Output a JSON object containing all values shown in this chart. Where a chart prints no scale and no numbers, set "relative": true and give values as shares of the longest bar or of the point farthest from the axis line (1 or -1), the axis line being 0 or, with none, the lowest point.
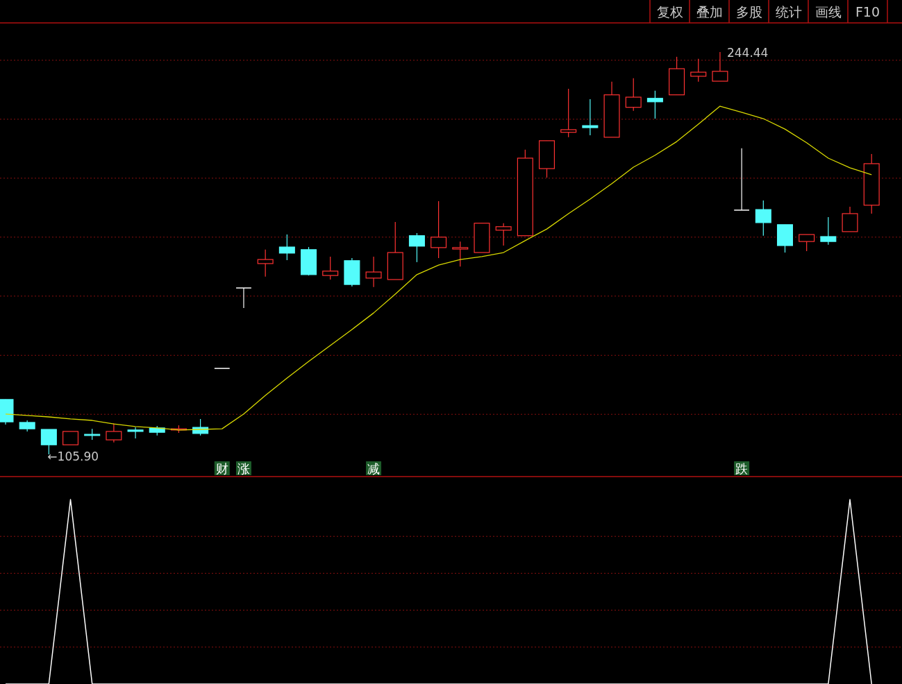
{
  "chart_data": [
    {
      "type": "candlestick",
      "categories": [
        null,
        null,
        null,
        null,
        null,
        null,
        null,
        null,
        null,
        null,
        null,
        null,
        null,
        null,
        null,
        null,
        null,
        null,
        null,
        null,
        null,
        null,
        null,
        null,
        null,
        null,
        null,
        null,
        null,
        null,
        null,
        null,
        null,
        null,
        null,
        null,
        null,
        null,
        null,
        null,
        null
      ],
      "grid": "y",
      "yticks": [
        {
          "value": 241.6,
          "label": null
        },
        {
          "value": 221.3,
          "label": null
        },
        {
          "value": 201.0,
          "label": null
        },
        {
          "value": 180.7,
          "label": null
        },
        {
          "value": 160.4,
          "label": null
        },
        {
          "value": 140.0,
          "label": null
        },
        {
          "value": 119.7,
          "label": null
        }
      ],
      "ohlc": [
        [
          124.8,
          124.8,
          116.2,
          117.1
        ],
        [
          116.9,
          117.6,
          113.8,
          114.7
        ],
        [
          114.5,
          114.5,
          105.9,
          109.2
        ],
        [
          109.2,
          113.8,
          109.2,
          113.8
        ],
        [
          112.8,
          114.7,
          110.9,
          112.4
        ],
        [
          110.9,
          116.6,
          110.0,
          113.8
        ],
        [
          114.3,
          115.2,
          111.4,
          113.8
        ],
        [
          115.0,
          115.7,
          112.4,
          113.5
        ],
        [
          114.3,
          115.9,
          113.3,
          114.7
        ],
        [
          115.2,
          118.1,
          112.4,
          113.1
        ],
        [
          135.5,
          135.5,
          135.5,
          135.5
        ],
        [
          163.2,
          163.2,
          156.3,
          163.2
        ],
        [
          171.6,
          176.4,
          167.1,
          173.0
        ],
        [
          177.3,
          181.6,
          172.8,
          175.2
        ],
        [
          176.4,
          177.3,
          167.5,
          167.8
        ],
        [
          167.5,
          174.0,
          166.1,
          169.0
        ],
        [
          172.6,
          173.5,
          163.7,
          164.4
        ],
        [
          166.6,
          174.0,
          163.5,
          168.7
        ],
        [
          166.1,
          185.9,
          166.1,
          175.4
        ],
        [
          181.2,
          182.1,
          172.1,
          177.6
        ],
        [
          177.1,
          193.1,
          173.5,
          180.7
        ],
        [
          176.6,
          179.2,
          170.6,
          177.1
        ],
        [
          175.4,
          185.5,
          175.4,
          185.5
        ],
        [
          183.1,
          185.5,
          177.8,
          184.3
        ],
        [
          181.2,
          210.8,
          181.2,
          207.9
        ],
        [
          204.3,
          213.9,
          201.2,
          213.9
        ],
        [
          216.8,
          231.8,
          215.1,
          217.7
        ],
        [
          219.1,
          228.2,
          215.8,
          218.4
        ],
        [
          215.1,
          234.2,
          215.1,
          229.7
        ],
        [
          225.4,
          235.4,
          224.2,
          228.9
        ],
        [
          228.5,
          231.1,
          221.5,
          227.3
        ],
        [
          229.7,
          242.8,
          229.7,
          238.7
        ],
        [
          236.1,
          242.1,
          234.2,
          237.5
        ],
        [
          234.4,
          244.44,
          234.4,
          237.8
        ],
        [
          190.0,
          211.3,
          190.0,
          190.0
        ],
        [
          190.2,
          193.3,
          181.2,
          185.7
        ],
        [
          185.0,
          185.0,
          175.4,
          177.8
        ],
        [
          179.2,
          181.6,
          175.9,
          181.6
        ],
        [
          180.9,
          187.6,
          178.1,
          179.2
        ],
        [
          182.6,
          191.2,
          182.6,
          188.8
        ],
        [
          191.7,
          209.3,
          188.8,
          206.0
        ]
      ],
      "colors": [
        "#54fcfc",
        "#54fcfc",
        "#54fcfc",
        "#ff3232",
        "#54fcfc",
        "#ff3232",
        "#54fcfc",
        "#54fcfc",
        "#ff3232",
        "#54fcfc",
        "#ffffff",
        "#ffffff",
        "#ff3232",
        "#54fcfc",
        "#54fcfc",
        "#ff3232",
        "#54fcfc",
        "#ff3232",
        "#ff3232",
        "#54fcfc",
        "#ff3232",
        "#ff3232",
        "#ff3232",
        "#ff3232",
        "#ff3232",
        "#ff3232",
        "#ff3232",
        "#54fcfc",
        "#ff3232",
        "#ff3232",
        "#54fcfc",
        "#ff3232",
        "#ff3232",
        "#ff3232",
        "#ffffff",
        "#54fcfc",
        "#54fcfc",
        "#ff3232",
        "#54fcfc",
        "#ff3232",
        "#ff3232"
      ],
      "value_labels": [
        null,
        null,
        "←105.90",
        null,
        null,
        null,
        null,
        null,
        null,
        null,
        "财",
        "涨",
        null,
        null,
        null,
        null,
        null,
        "减",
        null,
        null,
        null,
        null,
        null,
        null,
        null,
        null,
        null,
        null,
        null,
        null,
        null,
        null,
        null,
        "244.44",
        "跌",
        null,
        null,
        null,
        null,
        null,
        null
      ],
      "series": [
        {
          "type": "line",
          "color": "#d8d800",
          "values": [
            119.8,
            119.3,
            118.8,
            118.1,
            117.6,
            116.4,
            115.5,
            115.0,
            114.3,
            114.5,
            114.7,
            119.8,
            126.2,
            132.2,
            137.9,
            143.4,
            148.9,
            154.6,
            161.1,
            167.8,
            171.1,
            173.0,
            174.0,
            175.4,
            179.5,
            183.5,
            188.8,
            193.8,
            199.1,
            204.8,
            208.9,
            213.6,
            219.6,
            225.8,
            223.7,
            221.5,
            217.9,
            213.2,
            207.9,
            204.6,
            202.2
          ]
        }
      ],
      "annotations": [
        "复权",
        "叠加",
        "多股",
        "统计",
        "画线",
        "F10"
      ]
    },
    {
      "type": "line",
      "relative": true,
      "ref_lines": [
        {
          "axis": "y",
          "value": 0.8,
          "color": "#8a1010",
          "line_style": "dotted"
        },
        {
          "axis": "y",
          "value": 0.6,
          "color": "#8a1010",
          "line_style": "dotted"
        },
        {
          "axis": "y",
          "value": 0.4,
          "color": "#8a1010",
          "line_style": "dotted"
        },
        {
          "axis": "y",
          "value": 0.2,
          "color": "#8a1010",
          "line_style": "dotted"
        }
      ],
      "categories": [
        null,
        null,
        null,
        null,
        null,
        null,
        null,
        null,
        null,
        null,
        null,
        null,
        null,
        null,
        null,
        null,
        null,
        null,
        null,
        null,
        null,
        null,
        null,
        null,
        null,
        null,
        null,
        null,
        null,
        null,
        null,
        null,
        null,
        null,
        null,
        null,
        null,
        null,
        null,
        null,
        null
      ],
      "series": [
        {
          "color": "#ffffff",
          "values": [
            0,
            0,
            0,
            1,
            0,
            0,
            0,
            0,
            0,
            0,
            0,
            0,
            0,
            0,
            0,
            0,
            0,
            0,
            0,
            0,
            0,
            0,
            0,
            0,
            0,
            0,
            0,
            0,
            0,
            0,
            0,
            0,
            0,
            0,
            0,
            0,
            0,
            0,
            0,
            1,
            0
          ]
        }
      ]
    }
  ]
}
